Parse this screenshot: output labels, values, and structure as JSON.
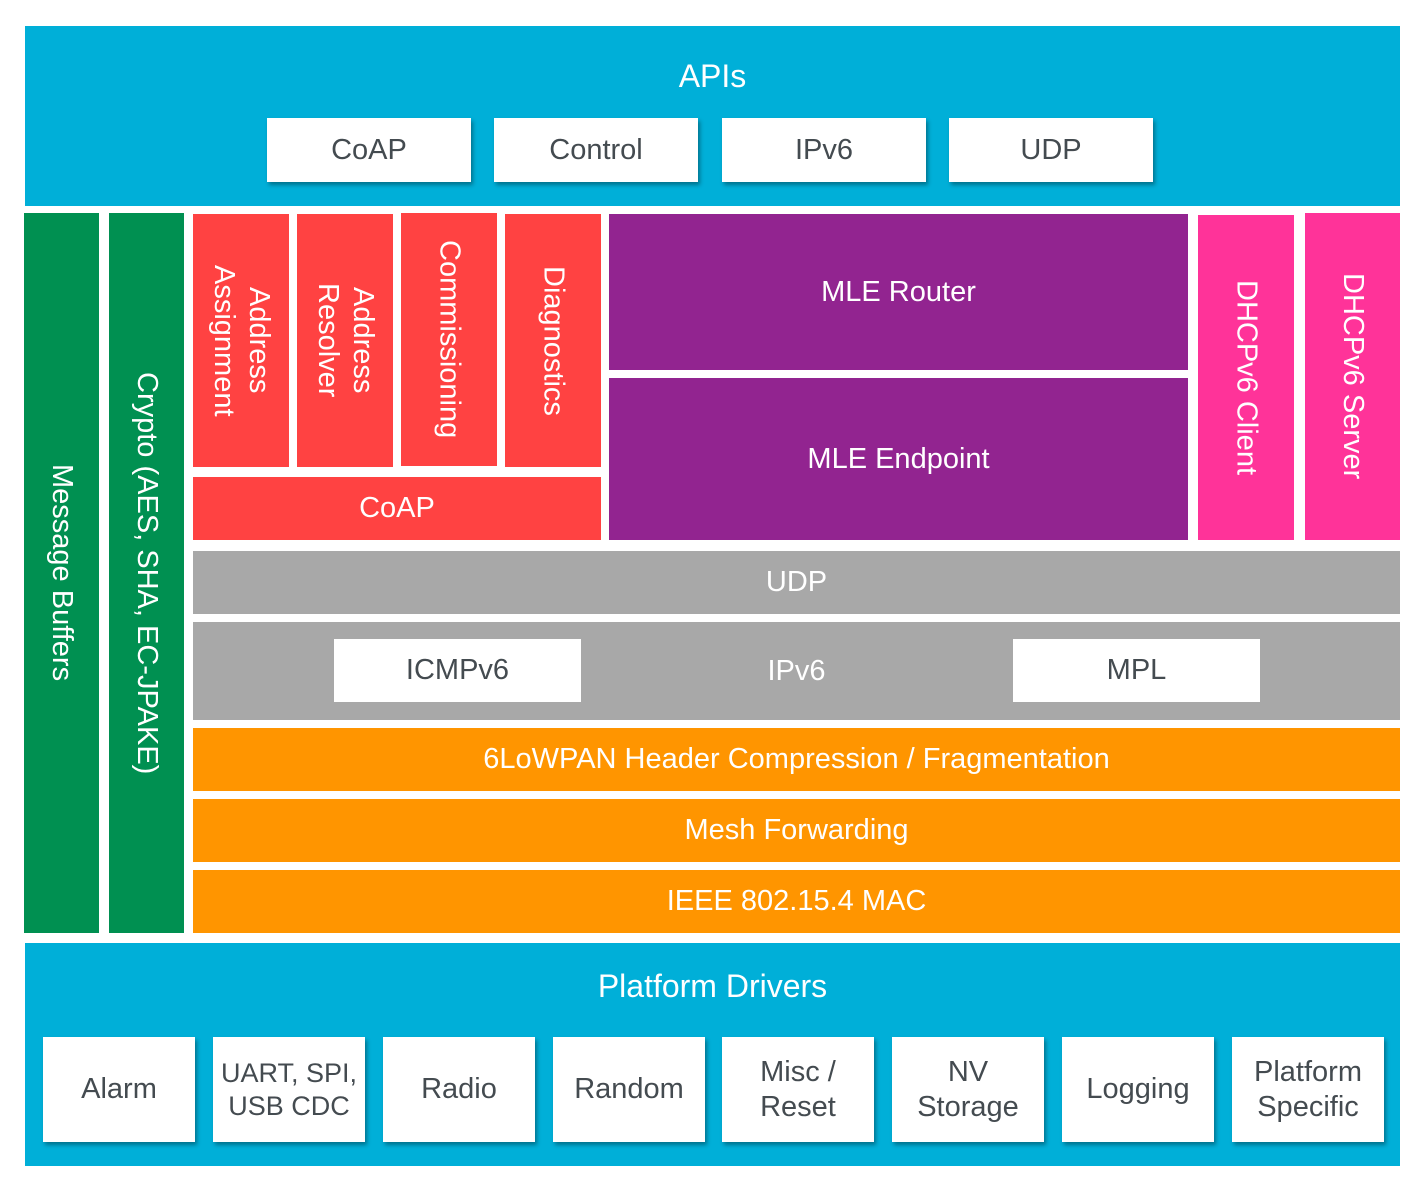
{
  "apis": {
    "title": "APIs",
    "items": [
      "CoAP",
      "Control",
      "IPv6",
      "UDP"
    ]
  },
  "message_buffers": "Message Buffers",
  "crypto": "Crypto (AES, SHA, EC-JPAKE)",
  "thread_services": {
    "address_assignment": "Address\nAssignment",
    "address_resolver": "Address\nResolver",
    "commissioning": "Commissioning",
    "diagnostics": "Diagnostics",
    "coap": "CoAP"
  },
  "mle": {
    "router": "MLE Router",
    "endpoint": "MLE Endpoint"
  },
  "dhcp": {
    "client": "DHCPv6 Client",
    "server": "DHCPv6 Server"
  },
  "udp": "UDP",
  "ipv6": {
    "label": "IPv6",
    "icmpv6": "ICMPv6",
    "mpl": "MPL"
  },
  "lowpan": "6LoWPAN Header Compression / Fragmentation",
  "mesh": "Mesh Forwarding",
  "mac": "IEEE 802.15.4 MAC",
  "platform": {
    "title": "Platform Drivers",
    "items": [
      "Alarm",
      "UART, SPI,\nUSB CDC",
      "Radio",
      "Random",
      "Misc /\nReset",
      "NV\nStorage",
      "Logging",
      "Platform\nSpecific"
    ]
  },
  "colors": {
    "api": "#00afd8",
    "support": "#009051",
    "services": "#ff4242",
    "mle": "#922490",
    "dhcp": "#ff3399",
    "network": "#a8a8a8",
    "link": "#ff9500"
  }
}
